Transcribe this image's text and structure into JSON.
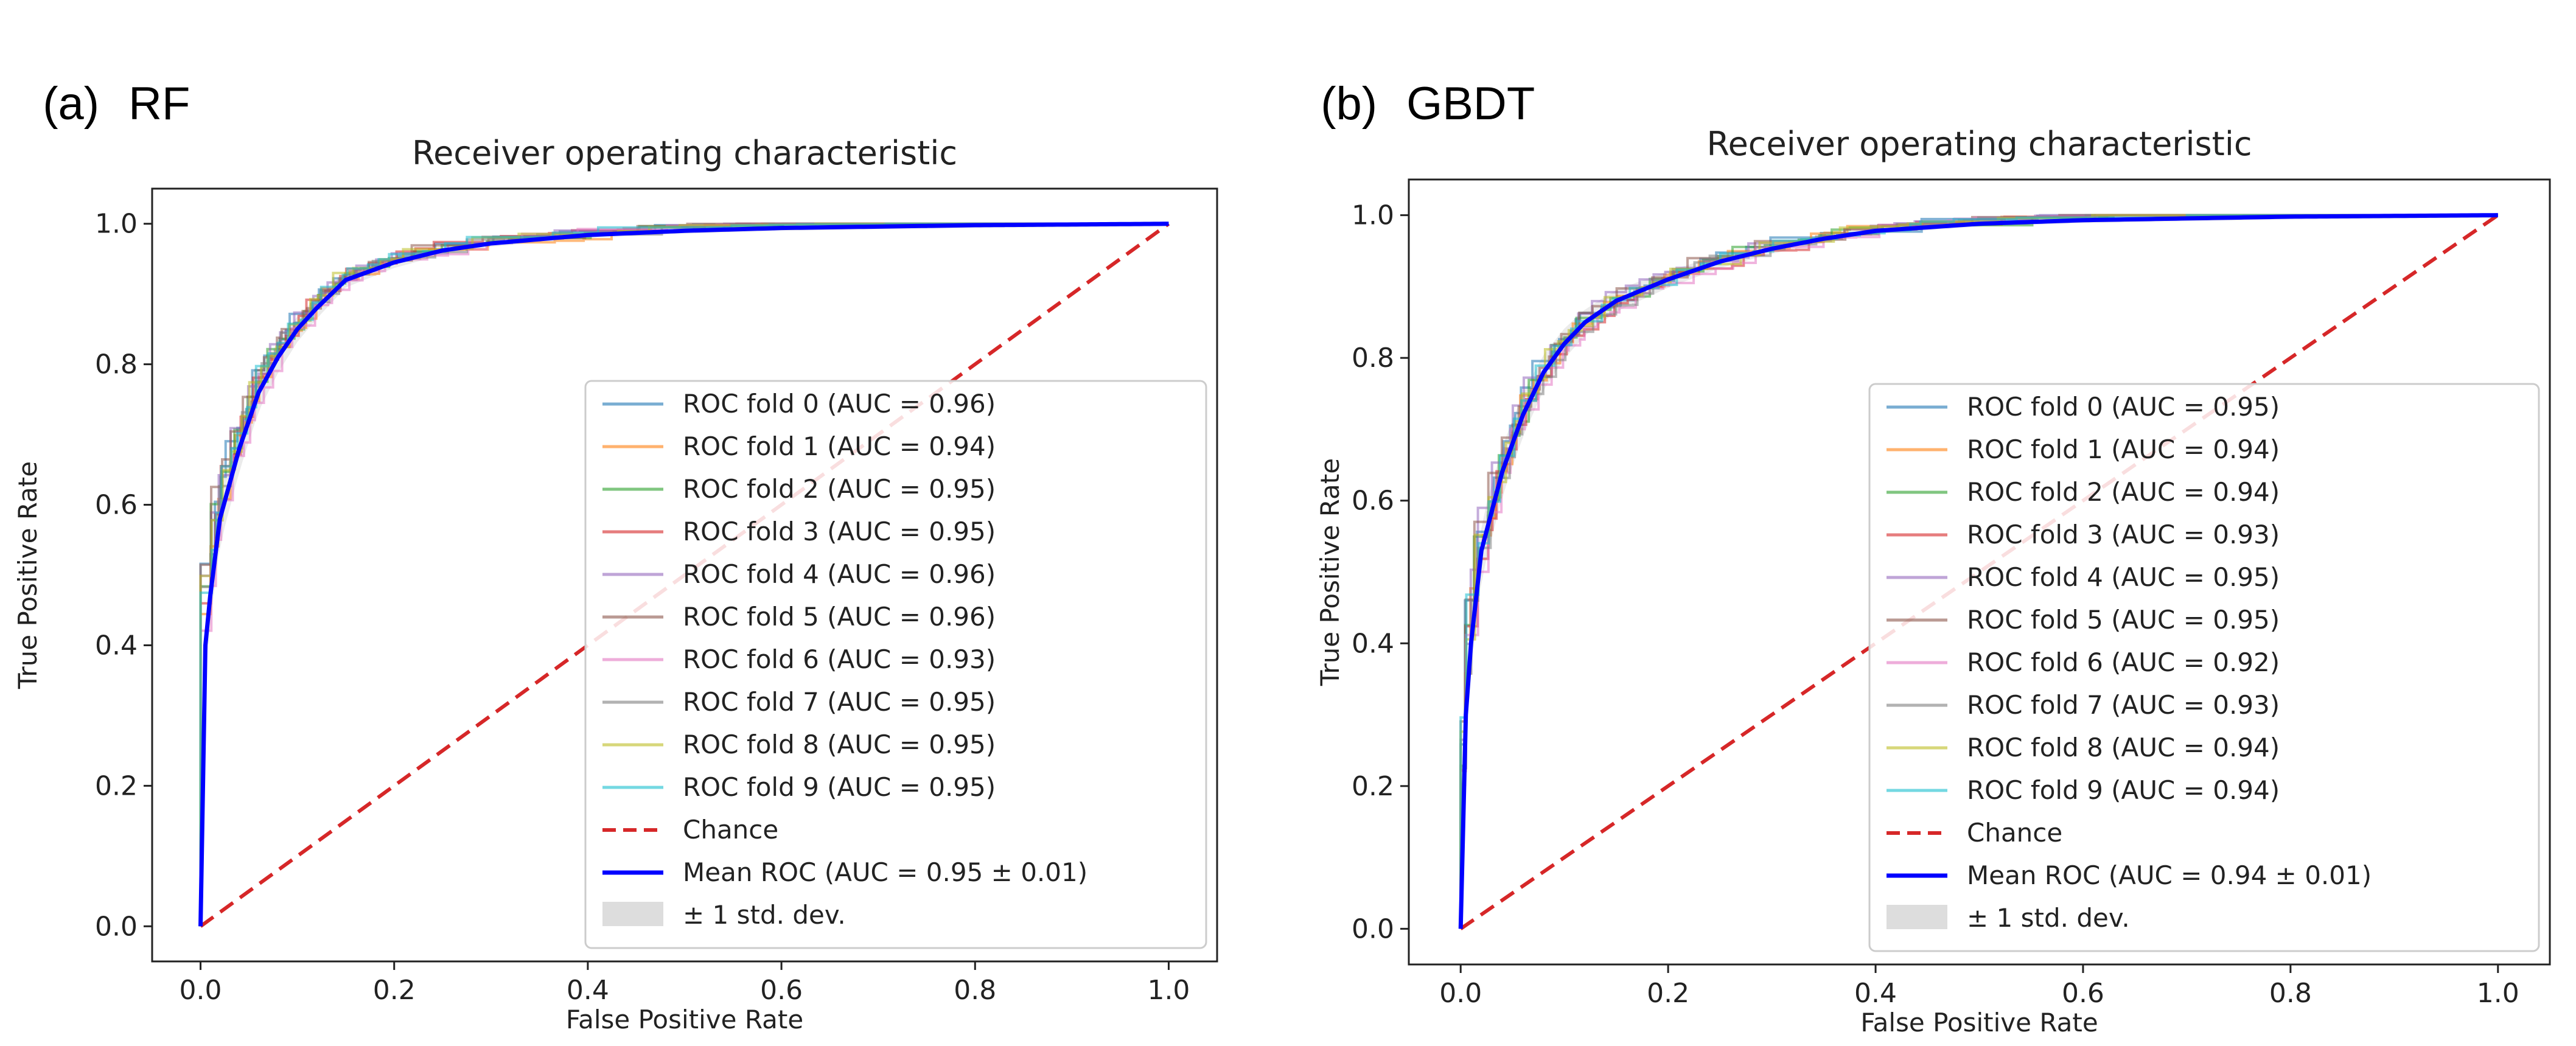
{
  "panels": [
    {
      "letter": "(a)",
      "model": "RF"
    },
    {
      "letter": "(b)",
      "model": "GBDT"
    }
  ],
  "chart_data": [
    {
      "type": "line",
      "title": "Receiver operating characteristic",
      "xlabel": "False Positive Rate",
      "ylabel": "True Positive Rate",
      "xlim": [
        -0.05,
        1.05
      ],
      "ylim": [
        -0.05,
        1.05
      ],
      "xticks": [
        "0.0",
        "0.2",
        "0.4",
        "0.6",
        "0.8",
        "1.0"
      ],
      "yticks": [
        "0.0",
        "0.2",
        "0.4",
        "0.6",
        "0.8",
        "1.0"
      ],
      "legend_position": "lower-right",
      "series": [
        {
          "name": "ROC fold 0 (AUC = 0.96)",
          "color": "#1f77b4",
          "auc": 0.96
        },
        {
          "name": "ROC fold 1 (AUC = 0.94)",
          "color": "#ff7f0e",
          "auc": 0.94
        },
        {
          "name": "ROC fold 2 (AUC = 0.95)",
          "color": "#2ca02c",
          "auc": 0.95
        },
        {
          "name": "ROC fold 3 (AUC = 0.95)",
          "color": "#d62728",
          "auc": 0.95
        },
        {
          "name": "ROC fold 4 (AUC = 0.96)",
          "color": "#9467bd",
          "auc": 0.96
        },
        {
          "name": "ROC fold 5 (AUC = 0.96)",
          "color": "#8c564b",
          "auc": 0.96
        },
        {
          "name": "ROC fold 6 (AUC = 0.93)",
          "color": "#e377c2",
          "auc": 0.93
        },
        {
          "name": "ROC fold 7 (AUC = 0.95)",
          "color": "#7f7f7f",
          "auc": 0.95
        },
        {
          "name": "ROC fold 8 (AUC = 0.95)",
          "color": "#bcbd22",
          "auc": 0.95
        },
        {
          "name": "ROC fold 9 (AUC = 0.95)",
          "color": "#17becf",
          "auc": 0.95
        }
      ],
      "chance": {
        "name": "Chance",
        "color": "#d62728",
        "x": [
          0,
          1
        ],
        "y": [
          0,
          1
        ]
      },
      "mean": {
        "name": "Mean ROC (AUC = 0.95 ± 0.01)",
        "color": "#0000ff",
        "x": [
          0,
          0.005,
          0.01,
          0.02,
          0.04,
          0.06,
          0.08,
          0.1,
          0.12,
          0.15,
          0.2,
          0.25,
          0.3,
          0.4,
          0.5,
          0.6,
          0.8,
          1.0
        ],
        "y": [
          0,
          0.4,
          0.47,
          0.58,
          0.68,
          0.76,
          0.81,
          0.85,
          0.88,
          0.92,
          0.945,
          0.962,
          0.972,
          0.984,
          0.99,
          0.994,
          0.998,
          1.0
        ]
      },
      "std_band": {
        "name": "± 1 std. dev.",
        "color": "#dddddd"
      }
    },
    {
      "type": "line",
      "title": "Receiver operating characteristic",
      "xlabel": "False Positive Rate",
      "ylabel": "True Positive Rate",
      "xlim": [
        -0.05,
        1.05
      ],
      "ylim": [
        -0.05,
        1.05
      ],
      "xticks": [
        "0.0",
        "0.2",
        "0.4",
        "0.6",
        "0.8",
        "1.0"
      ],
      "yticks": [
        "0.0",
        "0.2",
        "0.4",
        "0.6",
        "0.8",
        "1.0"
      ],
      "legend_position": "lower-right",
      "series": [
        {
          "name": "ROC fold 0 (AUC = 0.95)",
          "color": "#1f77b4",
          "auc": 0.95
        },
        {
          "name": "ROC fold 1 (AUC = 0.94)",
          "color": "#ff7f0e",
          "auc": 0.94
        },
        {
          "name": "ROC fold 2 (AUC = 0.94)",
          "color": "#2ca02c",
          "auc": 0.94
        },
        {
          "name": "ROC fold 3 (AUC = 0.93)",
          "color": "#d62728",
          "auc": 0.93
        },
        {
          "name": "ROC fold 4 (AUC = 0.95)",
          "color": "#9467bd",
          "auc": 0.95
        },
        {
          "name": "ROC fold 5 (AUC = 0.95)",
          "color": "#8c564b",
          "auc": 0.95
        },
        {
          "name": "ROC fold 6 (AUC = 0.92)",
          "color": "#e377c2",
          "auc": 0.92
        },
        {
          "name": "ROC fold 7 (AUC = 0.93)",
          "color": "#7f7f7f",
          "auc": 0.93
        },
        {
          "name": "ROC fold 8 (AUC = 0.94)",
          "color": "#bcbd22",
          "auc": 0.94
        },
        {
          "name": "ROC fold 9 (AUC = 0.94)",
          "color": "#17becf",
          "auc": 0.94
        }
      ],
      "chance": {
        "name": "Chance",
        "color": "#d62728",
        "x": [
          0,
          1
        ],
        "y": [
          0,
          1
        ]
      },
      "mean": {
        "name": "Mean ROC (AUC = 0.94 ± 0.01)",
        "color": "#0000ff",
        "x": [
          0,
          0.005,
          0.01,
          0.02,
          0.04,
          0.06,
          0.08,
          0.1,
          0.12,
          0.15,
          0.2,
          0.25,
          0.3,
          0.35,
          0.4,
          0.5,
          0.6,
          0.8,
          1.0
        ],
        "y": [
          0,
          0.3,
          0.4,
          0.53,
          0.64,
          0.72,
          0.78,
          0.82,
          0.85,
          0.88,
          0.91,
          0.935,
          0.953,
          0.967,
          0.978,
          0.988,
          0.993,
          0.998,
          1.0
        ]
      },
      "std_band": {
        "name": "± 1 std. dev.",
        "color": "#dddddd"
      }
    }
  ]
}
